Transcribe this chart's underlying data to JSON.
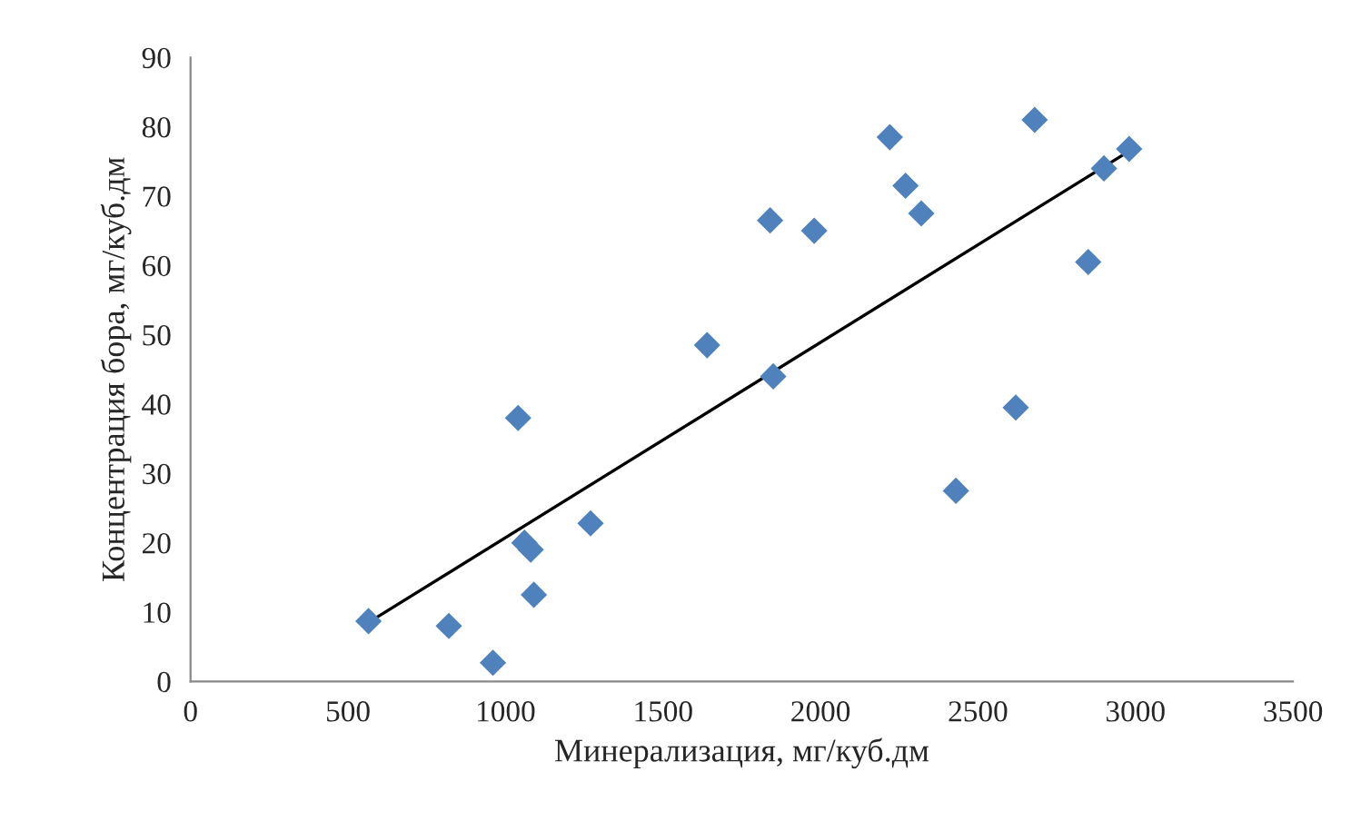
{
  "chart_data": {
    "type": "scatter",
    "xlabel": "Минерализация, мг/куб.дм",
    "ylabel": "Концентрация бора, мг/куб.дм",
    "xlim": [
      0,
      3500
    ],
    "xticks": [
      0,
      500,
      1000,
      1500,
      2000,
      2500,
      3000,
      3500
    ],
    "ylim": [
      0,
      90
    ],
    "yticks": [
      0,
      10,
      20,
      30,
      40,
      50,
      60,
      70,
      80,
      90
    ],
    "grid": false,
    "marker": "diamond",
    "series": [
      {
        "color": "#4f81bd",
        "x": [
          565,
          820,
          960,
          1040,
          1060,
          1080,
          1090,
          1270,
          1640,
          1840,
          1850,
          1980,
          2220,
          2270,
          2320,
          2430,
          2620,
          2680,
          2850,
          2900,
          2980
        ],
        "values": [
          8.7,
          8,
          2.7,
          38,
          20,
          19,
          12.5,
          22.8,
          48.5,
          66.5,
          44,
          65,
          78.5,
          71.5,
          67.5,
          27.5,
          39.5,
          81,
          60.5,
          74,
          76.8
        ]
      },
      {
        "type": "line",
        "color": "#000000",
        "marker": "none",
        "line_style": "solid",
        "x": [
          565,
          2980
        ],
        "values": [
          8.5,
          76.5
        ]
      }
    ]
  }
}
